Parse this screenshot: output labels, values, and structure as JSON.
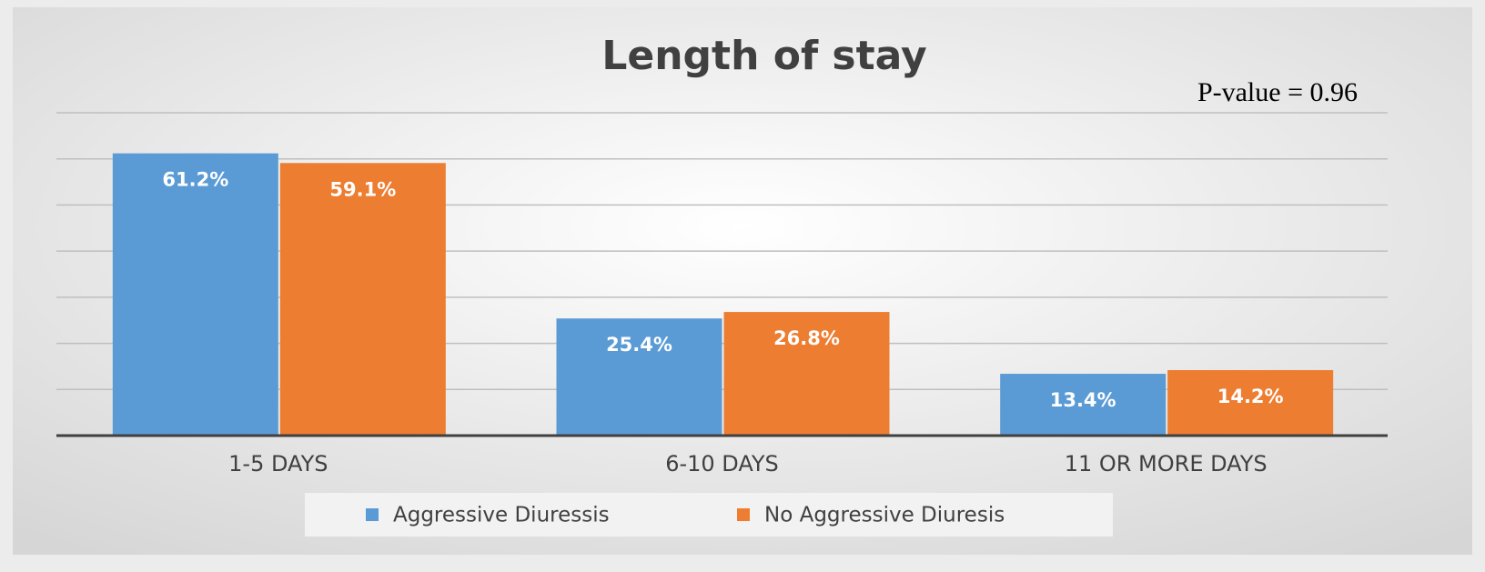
{
  "chart_data": {
    "type": "bar",
    "title": "Length of stay",
    "annotation": "P-value = 0.96",
    "categories": [
      "1-5 DAYS",
      "6-10 DAYS",
      "11 OR MORE DAYS"
    ],
    "series": [
      {
        "name": "Aggressive Diuressis",
        "color": "#5b9bd5",
        "values": [
          61.2,
          25.4,
          13.4
        ],
        "value_labels": [
          "61.2%",
          "25.4%",
          "13.4%"
        ]
      },
      {
        "name": "No Aggressive Diuresis",
        "color": "#ed7d31",
        "values": [
          59.1,
          26.8,
          14.2
        ],
        "value_labels": [
          "59.1%",
          "26.8%",
          "14.2%"
        ]
      }
    ],
    "ylim": [
      0,
      70
    ],
    "yticks": [
      0,
      10,
      20,
      30,
      40,
      50,
      60,
      70
    ],
    "grid": true,
    "legend": "bottom"
  }
}
